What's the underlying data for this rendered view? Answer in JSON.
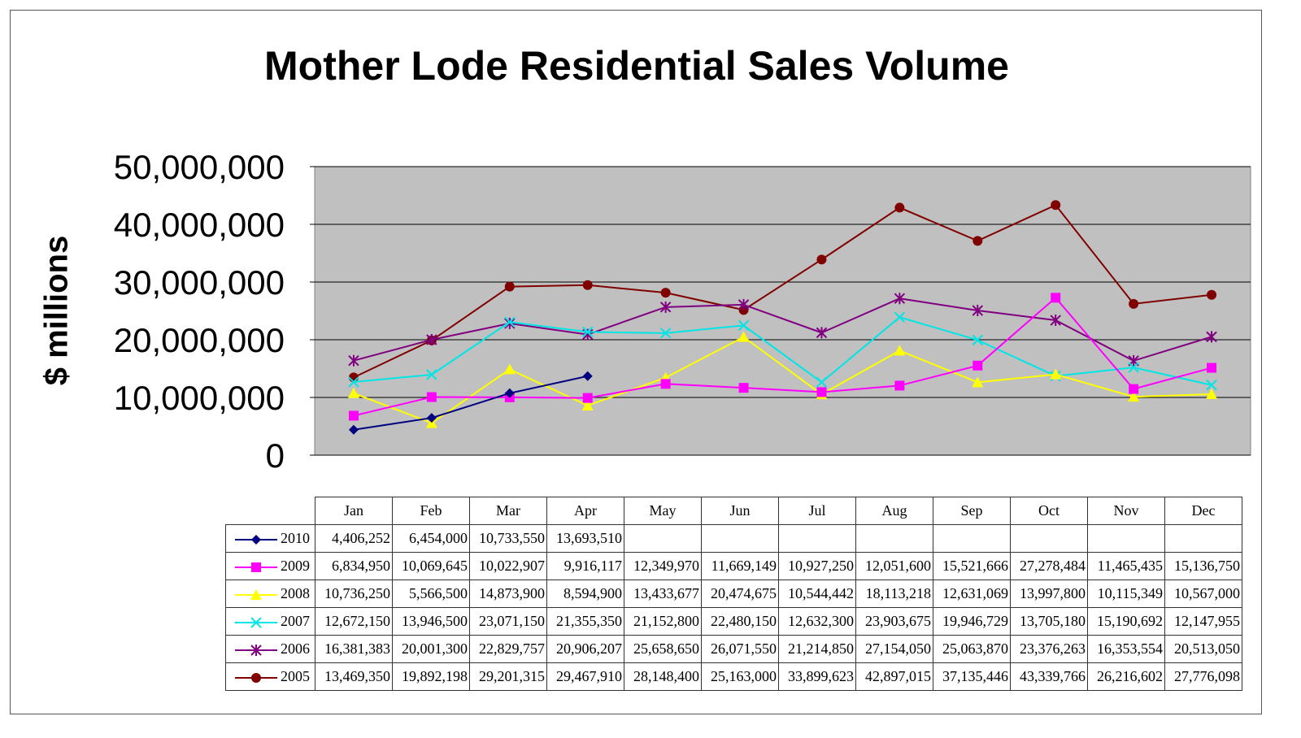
{
  "chart_data": {
    "type": "line",
    "title": "Mother Lode Residential Sales Volume",
    "ylabel": "$ millions",
    "xlabel": "",
    "ylim": [
      0,
      50000000
    ],
    "yticks": [
      "0",
      "10,000,000",
      "20,000,000",
      "30,000,000",
      "40,000,000",
      "50,000,000"
    ],
    "grid": true,
    "plot_background": "#c0c0c0",
    "legend": "data table below chart",
    "categories": [
      "Jan",
      "Feb",
      "Mar",
      "Apr",
      "May",
      "Jun",
      "Jul",
      "Aug",
      "Sep",
      "Oct",
      "Nov",
      "Dec"
    ],
    "series": [
      {
        "name": "2010",
        "color": "#000080",
        "marker": "diamond",
        "values": [
          4406252,
          6454000,
          10733550,
          13693510,
          null,
          null,
          null,
          null,
          null,
          null,
          null,
          null
        ],
        "labels": [
          "4,406,252",
          "6,454,000",
          "10,733,550",
          "13,693,510",
          "",
          "",
          "",
          "",
          "",
          "",
          "",
          ""
        ]
      },
      {
        "name": "2009",
        "color": "#ff00ff",
        "marker": "square",
        "values": [
          6834950,
          10069645,
          10022907,
          9916117,
          12349970,
          11669149,
          10927250,
          12051600,
          15521666,
          27278484,
          11465435,
          15136750
        ],
        "labels": [
          "6,834,950",
          "10,069,645",
          "10,022,907",
          "9,916,117",
          "12,349,970",
          "11,669,149",
          "10,927,250",
          "12,051,600",
          "15,521,666",
          "27,278,484",
          "11,465,435",
          "15,136,750"
        ]
      },
      {
        "name": "2008",
        "color": "#ffff00",
        "marker": "triangle",
        "values": [
          10736250,
          5566500,
          14873900,
          8594900,
          13433677,
          20474675,
          10544442,
          18113218,
          12631069,
          13997800,
          10115349,
          10567000
        ],
        "labels": [
          "10,736,250",
          "5,566,500",
          "14,873,900",
          "8,594,900",
          "13,433,677",
          "20,474,675",
          "10,544,442",
          "18,113,218",
          "12,631,069",
          "13,997,800",
          "10,115,349",
          "10,567,000"
        ]
      },
      {
        "name": "2007",
        "color": "#00e5e5",
        "marker": "x",
        "values": [
          12672150,
          13946500,
          23071150,
          21355350,
          21152800,
          22480150,
          12632300,
          23903675,
          19946729,
          13705180,
          15190692,
          12147955
        ],
        "labels": [
          "12,672,150",
          "13,946,500",
          "23,071,150",
          "21,355,350",
          "21,152,800",
          "22,480,150",
          "12,632,300",
          "23,903,675",
          "19,946,729",
          "13,705,180",
          "15,190,692",
          "12,147,955"
        ]
      },
      {
        "name": "2006",
        "color": "#800080",
        "marker": "star",
        "values": [
          16381383,
          20001300,
          22829757,
          20906207,
          25658650,
          26071550,
          21214850,
          27154050,
          25063870,
          23376263,
          16353554,
          20513050
        ],
        "labels": [
          "16,381,383",
          "20,001,300",
          "22,829,757",
          "20,906,207",
          "25,658,650",
          "26,071,550",
          "21,214,850",
          "27,154,050",
          "25,063,870",
          "23,376,263",
          "16,353,554",
          "20,513,050"
        ]
      },
      {
        "name": "2005",
        "color": "#800000",
        "marker": "circle",
        "values": [
          13469350,
          19892198,
          29201315,
          29467910,
          28148400,
          25163000,
          33899623,
          42897015,
          37135446,
          43339766,
          26216602,
          27776098
        ],
        "labels": [
          "13,469,350",
          "19,892,198",
          "29,201,315",
          "29,467,910",
          "28,148,400",
          "25,163,000",
          "33,899,623",
          "42,897,015",
          "37,135,446",
          "43,339,766",
          "26,216,602",
          "27,776,098"
        ]
      }
    ]
  }
}
